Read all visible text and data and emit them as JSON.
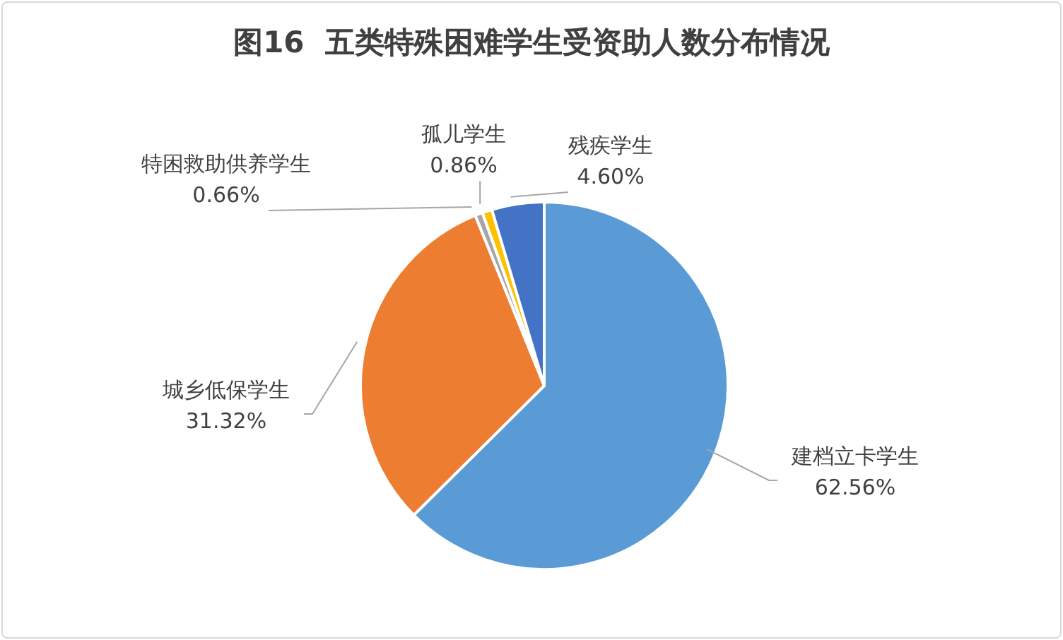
{
  "chart_data": {
    "type": "pie",
    "title": "图16  五类特殊困难学生受资助人数分布情况",
    "categories": [
      "建档立卡学生",
      "城乡低保学生",
      "特困救助供养学生",
      "孤儿学生",
      "残疾学生"
    ],
    "values": [
      62.56,
      31.32,
      0.66,
      0.86,
      4.6
    ],
    "value_labels": [
      "62.56%",
      "31.32%",
      "0.66%",
      "0.86%",
      "4.60%"
    ],
    "colors": [
      "#5b9bd5",
      "#ed7d31",
      "#a5a5a5",
      "#ffc000",
      "#4472c4"
    ],
    "legend": false
  }
}
